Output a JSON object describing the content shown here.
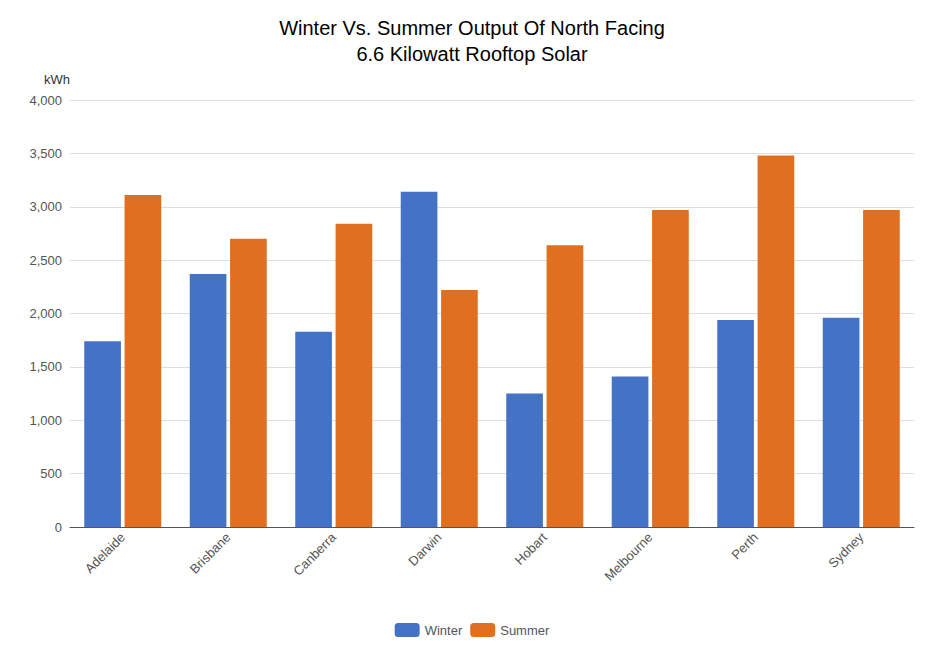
{
  "chart_data": {
    "type": "bar",
    "title": "Winter Vs. Summer Output Of North Facing\n6.6 Kilowatt Rooftop Solar",
    "ylabel": "kWh",
    "categories": [
      "Adelaide",
      "Brisbane",
      "Canberra",
      "Darwin",
      "Hobart",
      "Melbourne",
      "Perth",
      "Sydney"
    ],
    "series": [
      {
        "name": "Winter",
        "color": "#4472C4",
        "values": [
          1740,
          2370,
          1830,
          3140,
          1250,
          1410,
          1940,
          1960
        ]
      },
      {
        "name": "Summer",
        "color": "#E07020",
        "values": [
          3110,
          2700,
          2840,
          2220,
          2640,
          2970,
          3480,
          2970
        ]
      }
    ],
    "ylim": [
      0,
      4000
    ],
    "yticks": [
      0,
      500,
      1000,
      1500,
      2000,
      2500,
      3000,
      3500,
      4000
    ],
    "grid": true,
    "legend": "bottom"
  }
}
